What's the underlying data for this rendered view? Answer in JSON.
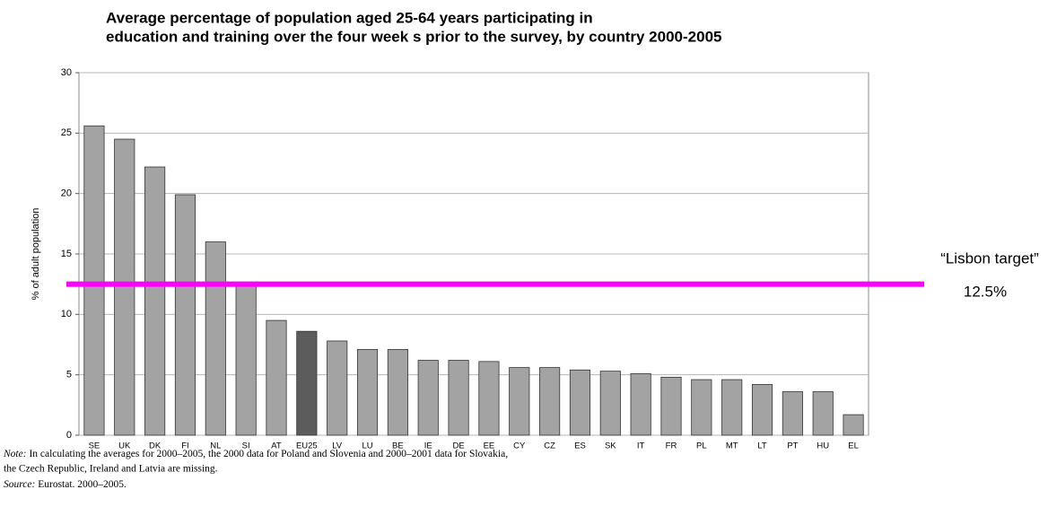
{
  "chart_data": {
    "type": "bar",
    "title": [
      "Average percentage of population aged 25-64 years participating in",
      "education and training over the four week s prior to the survey, by country 2000-2005"
    ],
    "y_label": "% of adult population",
    "categories": [
      "SE",
      "UK",
      "DK",
      "FI",
      "NL",
      "SI",
      "AT",
      "EU25",
      "LV",
      "LU",
      "BE",
      "IE",
      "DE",
      "EE",
      "CY",
      "CZ",
      "ES",
      "SK",
      "IT",
      "FR",
      "PL",
      "MT",
      "LT",
      "PT",
      "HU",
      "EL"
    ],
    "values": [
      25.6,
      24.5,
      22.2,
      19.9,
      16.0,
      12.4,
      9.5,
      8.6,
      7.8,
      7.1,
      7.1,
      6.2,
      6.2,
      6.1,
      5.6,
      5.6,
      5.4,
      5.3,
      5.1,
      4.8,
      4.6,
      4.6,
      4.2,
      3.6,
      3.6,
      1.7
    ],
    "colors": [
      "#a3a3a3",
      "#a3a3a3",
      "#a3a3a3",
      "#a3a3a3",
      "#a3a3a3",
      "#a3a3a3",
      "#a3a3a3",
      "#5c5c5c",
      "#a3a3a3",
      "#a3a3a3",
      "#a3a3a3",
      "#a3a3a3",
      "#a3a3a3",
      "#a3a3a3",
      "#a3a3a3",
      "#a3a3a3",
      "#a3a3a3",
      "#a3a3a3",
      "#a3a3a3",
      "#a3a3a3",
      "#a3a3a3",
      "#a3a3a3",
      "#a3a3a3",
      "#a3a3a3",
      "#a3a3a3",
      "#a3a3a3"
    ],
    "ylim": [
      0,
      30
    ],
    "yticks": [
      0,
      5,
      10,
      15,
      20,
      25,
      30
    ],
    "grid": true,
    "target": {
      "name": "“Lisbon target”",
      "value": 12.5,
      "value_label": "12.5%",
      "color": "#ff00ff"
    },
    "note_label": "Note:",
    "note_lines": [
      " In calculating the averages for 2000–2005, the 2000 data for Poland and Slovenia and 2000–2001 data for Slovakia,",
      "the Czech Republic, Ireland and Latvia are missing."
    ],
    "source_label": "Source:",
    "source": " Eurostat. 2000–2005."
  }
}
